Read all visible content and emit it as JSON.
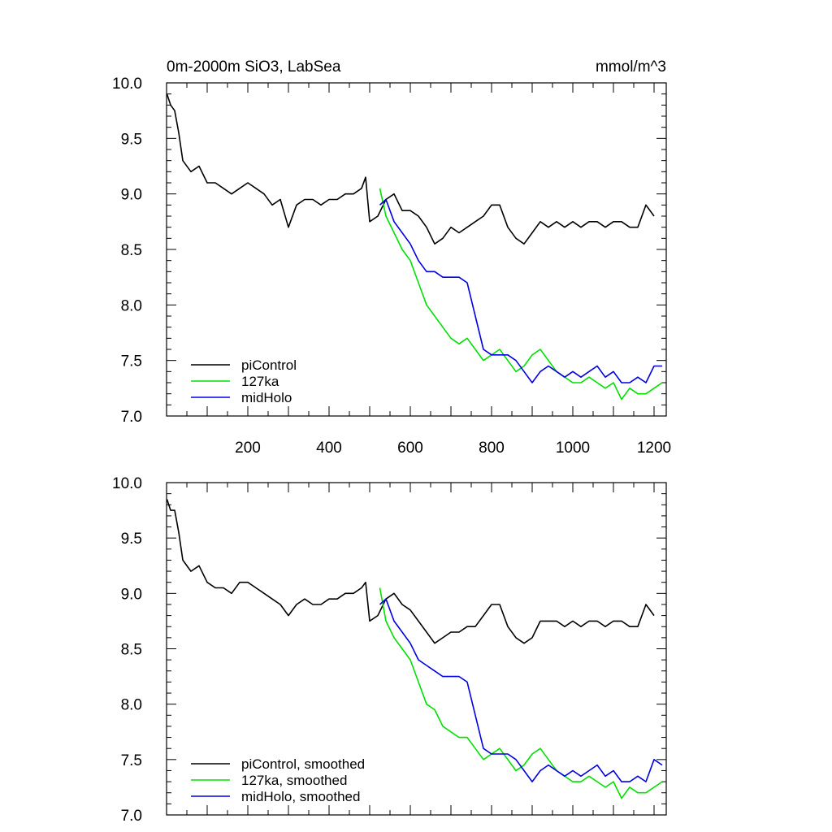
{
  "chart_data": [
    {
      "type": "line",
      "title": "0m-2000m SiO3, LabSea",
      "units": "mmol/m^3",
      "xlim": [
        0,
        1230
      ],
      "ylim": [
        7.0,
        10.0
      ],
      "yticks": [
        7.0,
        7.5,
        8.0,
        8.5,
        9.0,
        9.5,
        10.0
      ],
      "ytick_labels": [
        "7.0",
        "7.5",
        "8.0",
        "8.5",
        "9.0",
        "9.5",
        "10.0"
      ],
      "xticks": [
        200,
        400,
        600,
        800,
        1000,
        1200
      ],
      "xtick_labels": [
        "200",
        "400",
        "600",
        "800",
        "1000",
        "1200"
      ],
      "legend_position": "bottom-left",
      "series": [
        {
          "name": "piControl",
          "color": "#000000",
          "x": [
            1,
            10,
            20,
            30,
            40,
            60,
            80,
            100,
            120,
            140,
            160,
            180,
            200,
            220,
            240,
            260,
            280,
            300,
            320,
            340,
            360,
            380,
            400,
            420,
            440,
            460,
            480,
            490,
            500,
            520,
            540,
            560,
            580,
            600,
            620,
            640,
            660,
            680,
            700,
            720,
            740,
            760,
            780,
            800,
            820,
            840,
            860,
            880,
            900,
            920,
            940,
            960,
            980,
            1000,
            1020,
            1040,
            1060,
            1080,
            1100,
            1120,
            1140,
            1160,
            1180,
            1200
          ],
          "y": [
            9.9,
            9.8,
            9.75,
            9.55,
            9.3,
            9.2,
            9.25,
            9.1,
            9.1,
            9.05,
            9.0,
            9.05,
            9.1,
            9.05,
            9.0,
            8.9,
            8.95,
            8.7,
            8.9,
            8.95,
            8.95,
            8.9,
            8.95,
            8.95,
            9.0,
            9.0,
            9.05,
            9.15,
            8.75,
            8.8,
            8.95,
            9.0,
            8.85,
            8.85,
            8.8,
            8.7,
            8.55,
            8.6,
            8.7,
            8.65,
            8.7,
            8.75,
            8.8,
            8.9,
            8.9,
            8.7,
            8.6,
            8.55,
            8.65,
            8.75,
            8.7,
            8.75,
            8.7,
            8.75,
            8.7,
            8.75,
            8.75,
            8.7,
            8.75,
            8.75,
            8.7,
            8.7,
            8.9,
            8.8
          ]
        },
        {
          "name": "127ka",
          "color": "#00e000",
          "x": [
            525,
            540,
            560,
            580,
            600,
            620,
            640,
            660,
            680,
            700,
            720,
            740,
            760,
            780,
            800,
            820,
            840,
            860,
            880,
            900,
            920,
            940,
            960,
            980,
            1000,
            1020,
            1040,
            1060,
            1080,
            1100,
            1120,
            1140,
            1160,
            1180,
            1200,
            1220
          ],
          "y": [
            9.05,
            8.8,
            8.65,
            8.5,
            8.4,
            8.2,
            8.0,
            7.9,
            7.8,
            7.7,
            7.65,
            7.7,
            7.6,
            7.5,
            7.55,
            7.6,
            7.5,
            7.4,
            7.45,
            7.55,
            7.6,
            7.5,
            7.4,
            7.35,
            7.3,
            7.3,
            7.35,
            7.3,
            7.25,
            7.3,
            7.15,
            7.25,
            7.2,
            7.2,
            7.25,
            7.3
          ]
        },
        {
          "name": "midHolo",
          "color": "#0000e0",
          "x": [
            525,
            540,
            560,
            580,
            600,
            620,
            640,
            660,
            680,
            700,
            720,
            740,
            760,
            780,
            800,
            820,
            840,
            860,
            880,
            900,
            920,
            940,
            960,
            980,
            1000,
            1020,
            1040,
            1060,
            1080,
            1100,
            1120,
            1140,
            1160,
            1180,
            1200,
            1220
          ],
          "y": [
            8.9,
            8.95,
            8.75,
            8.65,
            8.55,
            8.4,
            8.3,
            8.3,
            8.25,
            8.25,
            8.25,
            8.2,
            7.9,
            7.6,
            7.55,
            7.55,
            7.55,
            7.5,
            7.4,
            7.3,
            7.4,
            7.45,
            7.4,
            7.35,
            7.4,
            7.35,
            7.4,
            7.45,
            7.35,
            7.4,
            7.3,
            7.3,
            7.35,
            7.3,
            7.45,
            7.45
          ]
        }
      ]
    },
    {
      "type": "line",
      "xlim": [
        0,
        1230
      ],
      "ylim": [
        7.0,
        10.0
      ],
      "yticks": [
        7.0,
        7.5,
        8.0,
        8.5,
        9.0,
        9.5,
        10.0
      ],
      "ytick_labels": [
        "7.0",
        "7.5",
        "8.0",
        "8.5",
        "9.0",
        "9.5",
        "10.0"
      ],
      "xticks": [
        200,
        400,
        600,
        800,
        1000,
        1200
      ],
      "legend_position": "bottom-left",
      "series": [
        {
          "name": "piControl, smoothed",
          "color": "#000000",
          "x": [
            1,
            10,
            20,
            30,
            40,
            60,
            80,
            100,
            120,
            140,
            160,
            180,
            200,
            220,
            240,
            260,
            280,
            300,
            320,
            340,
            360,
            380,
            400,
            420,
            440,
            460,
            480,
            490,
            500,
            520,
            540,
            560,
            580,
            600,
            620,
            640,
            660,
            680,
            700,
            720,
            740,
            760,
            780,
            800,
            820,
            840,
            860,
            880,
            900,
            920,
            940,
            960,
            980,
            1000,
            1020,
            1040,
            1060,
            1080,
            1100,
            1120,
            1140,
            1160,
            1180,
            1200
          ],
          "y": [
            9.85,
            9.75,
            9.75,
            9.55,
            9.3,
            9.2,
            9.25,
            9.1,
            9.05,
            9.05,
            9.0,
            9.1,
            9.1,
            9.05,
            9.0,
            8.95,
            8.9,
            8.8,
            8.9,
            8.95,
            8.9,
            8.9,
            8.95,
            8.95,
            9.0,
            9.0,
            9.05,
            9.1,
            8.75,
            8.8,
            8.95,
            9.0,
            8.9,
            8.85,
            8.75,
            8.65,
            8.55,
            8.6,
            8.65,
            8.65,
            8.7,
            8.7,
            8.8,
            8.9,
            8.9,
            8.7,
            8.6,
            8.55,
            8.6,
            8.75,
            8.75,
            8.75,
            8.7,
            8.75,
            8.7,
            8.75,
            8.75,
            8.7,
            8.75,
            8.75,
            8.7,
            8.7,
            8.9,
            8.8
          ]
        },
        {
          "name": "127ka, smoothed",
          "color": "#00e000",
          "x": [
            525,
            540,
            560,
            580,
            600,
            620,
            640,
            660,
            680,
            700,
            720,
            740,
            760,
            780,
            800,
            820,
            840,
            860,
            880,
            900,
            920,
            940,
            960,
            980,
            1000,
            1020,
            1040,
            1060,
            1080,
            1100,
            1120,
            1140,
            1160,
            1180,
            1200,
            1220
          ],
          "y": [
            9.05,
            8.75,
            8.6,
            8.5,
            8.4,
            8.2,
            8.0,
            7.95,
            7.8,
            7.75,
            7.7,
            7.7,
            7.6,
            7.5,
            7.55,
            7.6,
            7.5,
            7.4,
            7.45,
            7.55,
            7.6,
            7.5,
            7.4,
            7.35,
            7.3,
            7.3,
            7.35,
            7.3,
            7.25,
            7.3,
            7.15,
            7.25,
            7.2,
            7.2,
            7.25,
            7.3
          ]
        },
        {
          "name": "midHolo, smoothed",
          "color": "#0000e0",
          "x": [
            525,
            540,
            560,
            580,
            600,
            620,
            640,
            660,
            680,
            700,
            720,
            740,
            760,
            780,
            800,
            820,
            840,
            860,
            880,
            900,
            920,
            940,
            960,
            980,
            1000,
            1020,
            1040,
            1060,
            1080,
            1100,
            1120,
            1140,
            1160,
            1180,
            1200,
            1220
          ],
          "y": [
            8.9,
            8.95,
            8.75,
            8.65,
            8.55,
            8.4,
            8.35,
            8.3,
            8.25,
            8.25,
            8.25,
            8.2,
            7.9,
            7.6,
            7.55,
            7.55,
            7.55,
            7.5,
            7.4,
            7.3,
            7.4,
            7.45,
            7.4,
            7.35,
            7.4,
            7.35,
            7.4,
            7.45,
            7.35,
            7.4,
            7.3,
            7.3,
            7.35,
            7.3,
            7.5,
            7.45
          ]
        }
      ]
    }
  ]
}
